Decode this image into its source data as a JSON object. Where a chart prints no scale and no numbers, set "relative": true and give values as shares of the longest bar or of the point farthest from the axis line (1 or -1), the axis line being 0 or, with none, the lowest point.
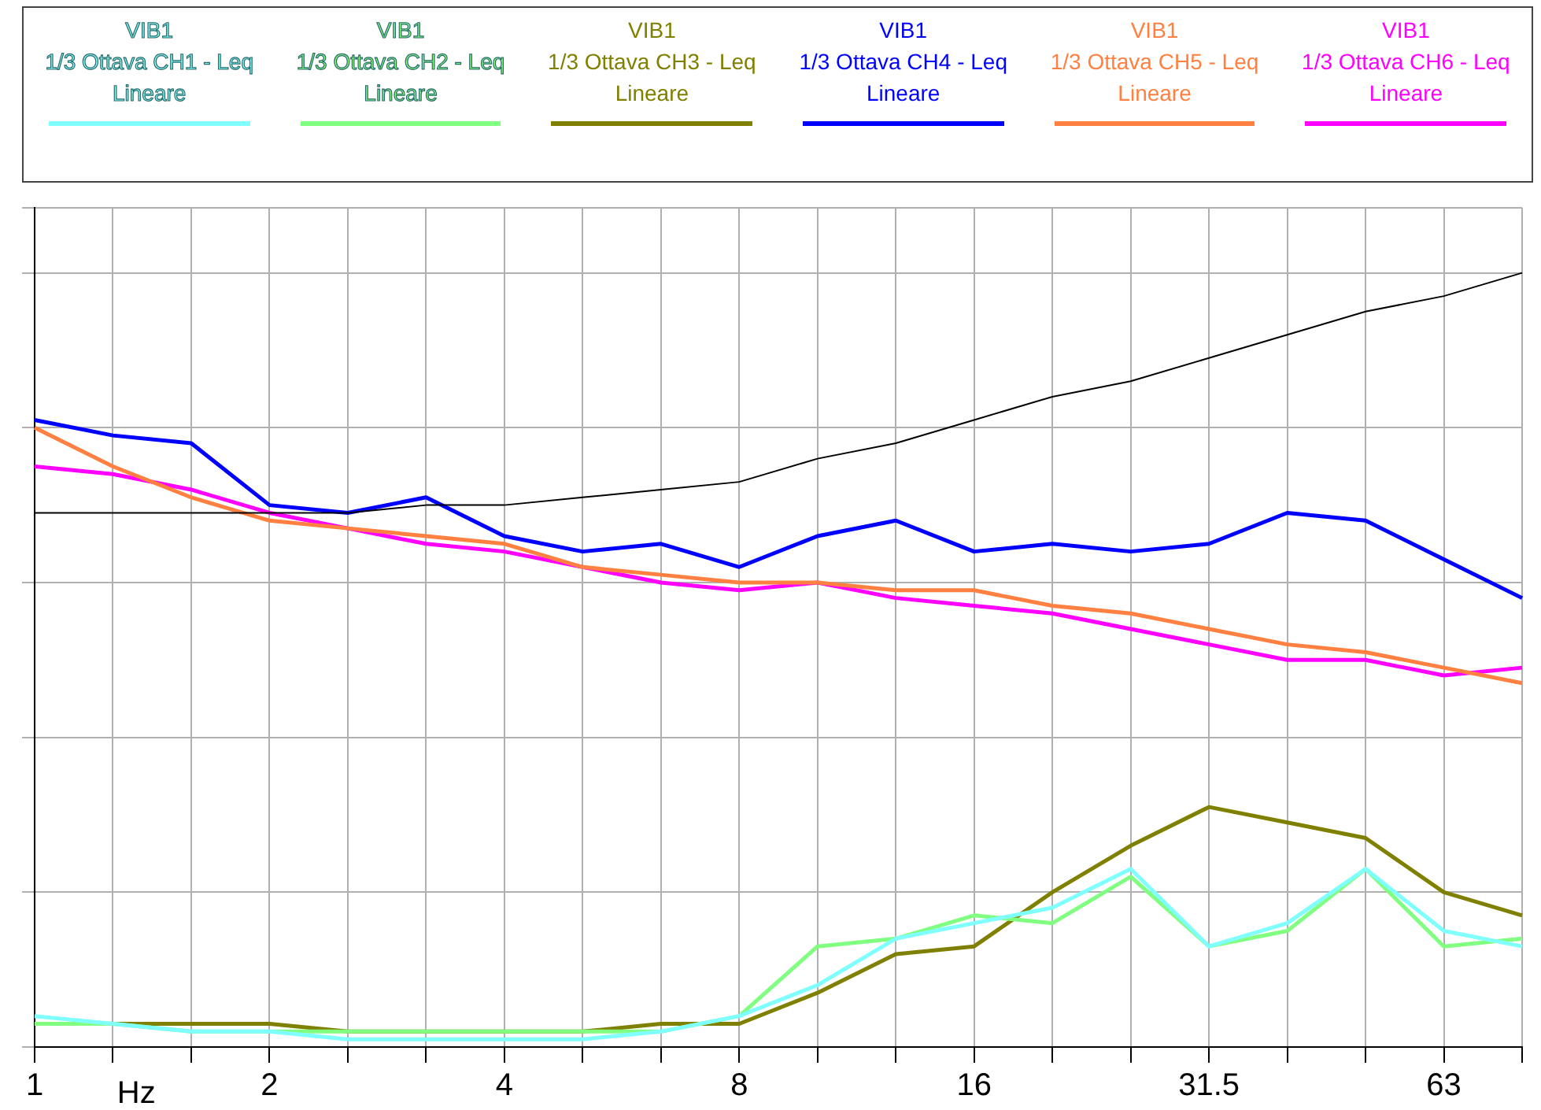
{
  "chart_data": {
    "type": "line",
    "relative": true,
    "xlabel": "Hz",
    "grid": true,
    "legend": "top",
    "marker": "none",
    "line_style": "solid",
    "categories": [
      "1",
      null,
      null,
      "2",
      null,
      null,
      "4",
      null,
      null,
      "8",
      null,
      null,
      "16",
      null,
      null,
      "31.5",
      null,
      null,
      "63",
      null
    ],
    "series": [
      {
        "name": "VIB1\n1/3 Ottava CH1 - Leq\nLineare",
        "color": "#80ffff",
        "values": [
          0.04,
          0.03,
          0.02,
          0.02,
          0.01,
          0.01,
          0.01,
          0.01,
          0.02,
          0.04,
          0.08,
          0.14,
          0.16,
          0.18,
          0.23,
          0.13,
          0.16,
          0.23,
          0.15,
          0.13
        ]
      },
      {
        "name": "VIB1\n1/3 Ottava CH2 - Leq\nLineare",
        "color": "#80ff80",
        "values": [
          0.03,
          0.03,
          0.02,
          0.02,
          0.02,
          0.02,
          0.02,
          0.02,
          0.02,
          0.04,
          0.13,
          0.14,
          0.17,
          0.16,
          0.22,
          0.13,
          0.15,
          0.23,
          0.13,
          0.14
        ]
      },
      {
        "name": "VIB1\n1/3 Ottava CH3 - Leq\nLineare",
        "color": "#808000",
        "values": [
          0.03,
          0.03,
          0.03,
          0.03,
          0.02,
          0.02,
          0.02,
          0.02,
          0.03,
          0.03,
          0.07,
          0.12,
          0.13,
          0.2,
          0.26,
          0.31,
          0.29,
          0.27,
          0.2,
          0.17
        ]
      },
      {
        "name": "VIB1\n1/3 Ottava CH4 - Leq\nLineare",
        "color": "#0000ff",
        "values": [
          0.81,
          0.79,
          0.78,
          0.7,
          0.69,
          0.71,
          0.66,
          0.64,
          0.65,
          0.62,
          0.66,
          0.68,
          0.64,
          0.65,
          0.64,
          0.65,
          0.69,
          0.68,
          0.63,
          0.58
        ]
      },
      {
        "name": "VIB1\n1/3 Ottava CH5 - Leq\nLineare",
        "color": "#ff8040",
        "values": [
          0.8,
          0.75,
          0.71,
          0.68,
          0.67,
          0.66,
          0.65,
          0.62,
          0.61,
          0.6,
          0.6,
          0.59,
          0.59,
          0.57,
          0.56,
          0.54,
          0.52,
          0.51,
          0.49,
          0.47
        ]
      },
      {
        "name": "VIB1\n1/3 Ottava CH6 - Leq\nLineare",
        "color": "#ff00ff",
        "values": [
          0.75,
          0.74,
          0.72,
          0.69,
          0.67,
          0.65,
          0.64,
          0.62,
          0.6,
          0.59,
          0.6,
          0.58,
          0.57,
          0.56,
          0.54,
          0.52,
          0.5,
          0.5,
          0.48,
          0.49
        ]
      },
      {
        "color": "#000000",
        "values": [
          0.69,
          0.69,
          0.69,
          0.69,
          0.69,
          0.7,
          0.7,
          0.71,
          0.72,
          0.73,
          0.76,
          0.78,
          0.81,
          0.84,
          0.86,
          0.89,
          0.92,
          0.95,
          0.97,
          1
        ]
      }
    ]
  }
}
